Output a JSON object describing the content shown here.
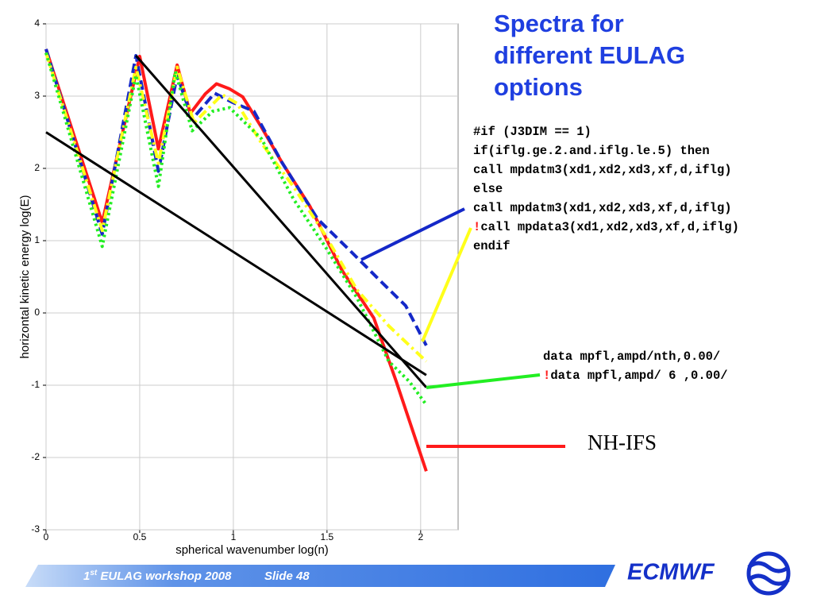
{
  "chart_data": {
    "type": "line",
    "title": [
      "Spectra for",
      "different EULAG",
      "options"
    ],
    "x_label": "spherical wavenumber log(n)",
    "y_label": "horizontal kinetic energy log(E)",
    "xlim": [
      0,
      2.2
    ],
    "ylim": [
      -3,
      4
    ],
    "xticks": [
      0,
      0.5,
      1,
      1.5,
      2
    ],
    "yticks": [
      -3,
      -2,
      -1,
      0,
      1,
      2,
      3,
      4
    ],
    "grid": true,
    "series": [
      {
        "color": "#ff1a1a",
        "style": "solid",
        "x": [
          0,
          0.3,
          0.5,
          0.6,
          0.7,
          0.77,
          0.85,
          0.91,
          0.98,
          1.05,
          1.15,
          1.26,
          1.41,
          1.58,
          1.75,
          1.87,
          2.03
        ],
        "values": [
          3.65,
          1.25,
          3.55,
          2.27,
          3.43,
          2.76,
          3.03,
          3.17,
          3.1,
          2.99,
          2.57,
          2.08,
          1.47,
          0.59,
          -0.07,
          -0.95,
          -2.19
        ]
      },
      {
        "color": "#1428c8",
        "style": "dashed",
        "x": [
          0,
          0.3,
          0.48,
          0.6,
          0.7,
          0.78,
          0.9,
          0.99,
          1.11,
          1.26,
          1.45,
          1.62,
          1.79,
          1.92,
          2.03
        ],
        "values": [
          3.65,
          1.09,
          3.56,
          1.96,
          3.29,
          2.68,
          3.04,
          2.92,
          2.79,
          2.08,
          1.3,
          0.87,
          0.43,
          0.1,
          -0.45
        ]
      },
      {
        "color": "#ffff1a",
        "style": "dashdot",
        "x": [
          0,
          0.3,
          0.48,
          0.6,
          0.7,
          0.79,
          0.94,
          1.02,
          1.15,
          1.32,
          1.49,
          1.66,
          1.83,
          2.03
        ],
        "values": [
          3.6,
          1.14,
          3.4,
          2.07,
          3.4,
          2.63,
          3.02,
          2.9,
          2.35,
          1.75,
          1.08,
          0.32,
          -0.18,
          -0.67
        ]
      },
      {
        "color": "#22ee22",
        "style": "dotted",
        "x": [
          0,
          0.3,
          0.48,
          0.6,
          0.69,
          0.78,
          0.89,
          0.98,
          1.15,
          1.32,
          1.49,
          1.66,
          1.83,
          1.94,
          2.03
        ],
        "values": [
          3.6,
          0.92,
          3.29,
          1.75,
          3.34,
          2.52,
          2.79,
          2.84,
          2.41,
          1.58,
          0.92,
          0.21,
          -0.67,
          -0.95,
          -1.27
        ]
      },
      {
        "color": "#000000",
        "style": "solid",
        "x": [
          0,
          2.03
        ],
        "values": [
          2.5,
          -0.86
        ]
      },
      {
        "color": "#000000",
        "style": "solid",
        "x": [
          0.48,
          2.03
        ],
        "values": [
          3.56,
          -1.03
        ]
      }
    ]
  },
  "annotations": {
    "code_block": [
      {
        "text": "#if (J3DIM == 1)"
      },
      {
        "text": "if(iflg.ge.2.and.iflg.le.5) then"
      },
      {
        "text": "call mpdatm3(xd1,xd2,xd3,xf,d,iflg)"
      },
      {
        "text": "else"
      },
      {
        "text": "call mpdatm3(xd1,xd2,xd3,xf,d,iflg)"
      },
      {
        "mark": "!",
        "text": "call mpdata3(xd1,xd2,xd3,xf,d,iflg)"
      },
      {
        "text": "endif"
      }
    ],
    "code_block_2": [
      {
        "text": "data mpfl,ampd/nth,0.00/"
      },
      {
        "mark": "!",
        "text": "data mpfl,ampd/ 6 ,0.00/"
      }
    ],
    "nh_label": "NH-IFS"
  },
  "footer": {
    "number": "1",
    "sup": "st",
    "text": " EULAG workshop 2008",
    "slide": "Slide 48",
    "logo": "ECMWF"
  }
}
